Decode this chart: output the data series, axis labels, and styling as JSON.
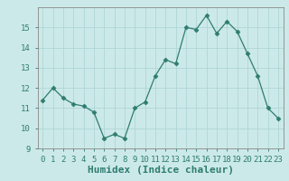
{
  "x": [
    0,
    1,
    2,
    3,
    4,
    5,
    6,
    7,
    8,
    9,
    10,
    11,
    12,
    13,
    14,
    15,
    16,
    17,
    18,
    19,
    20,
    21,
    22,
    23
  ],
  "y": [
    11.4,
    12.0,
    11.5,
    11.2,
    11.1,
    10.8,
    9.5,
    9.7,
    9.5,
    11.0,
    11.3,
    12.6,
    13.4,
    13.2,
    15.0,
    14.9,
    15.6,
    14.7,
    15.3,
    14.8,
    13.7,
    12.6,
    11.0,
    10.5
  ],
  "line_color": "#2e7d6e",
  "marker": "D",
  "marker_size": 2.5,
  "bg_color": "#cce9e9",
  "grid_color": "#b0d5d5",
  "xlabel": "Humidex (Indice chaleur)",
  "ylim": [
    9,
    16
  ],
  "xlim": [
    -0.5,
    23.5
  ],
  "yticks": [
    9,
    10,
    11,
    12,
    13,
    14,
    15
  ],
  "xticks": [
    0,
    1,
    2,
    3,
    4,
    5,
    6,
    7,
    8,
    9,
    10,
    11,
    12,
    13,
    14,
    15,
    16,
    17,
    18,
    19,
    20,
    21,
    22,
    23
  ],
  "xtick_labels": [
    "0",
    "1",
    "2",
    "3",
    "4",
    "5",
    "6",
    "7",
    "8",
    "9",
    "10",
    "11",
    "12",
    "13",
    "14",
    "15",
    "16",
    "17",
    "18",
    "19",
    "20",
    "21",
    "22",
    "23"
  ],
  "tick_fontsize": 6.5,
  "xlabel_fontsize": 8
}
